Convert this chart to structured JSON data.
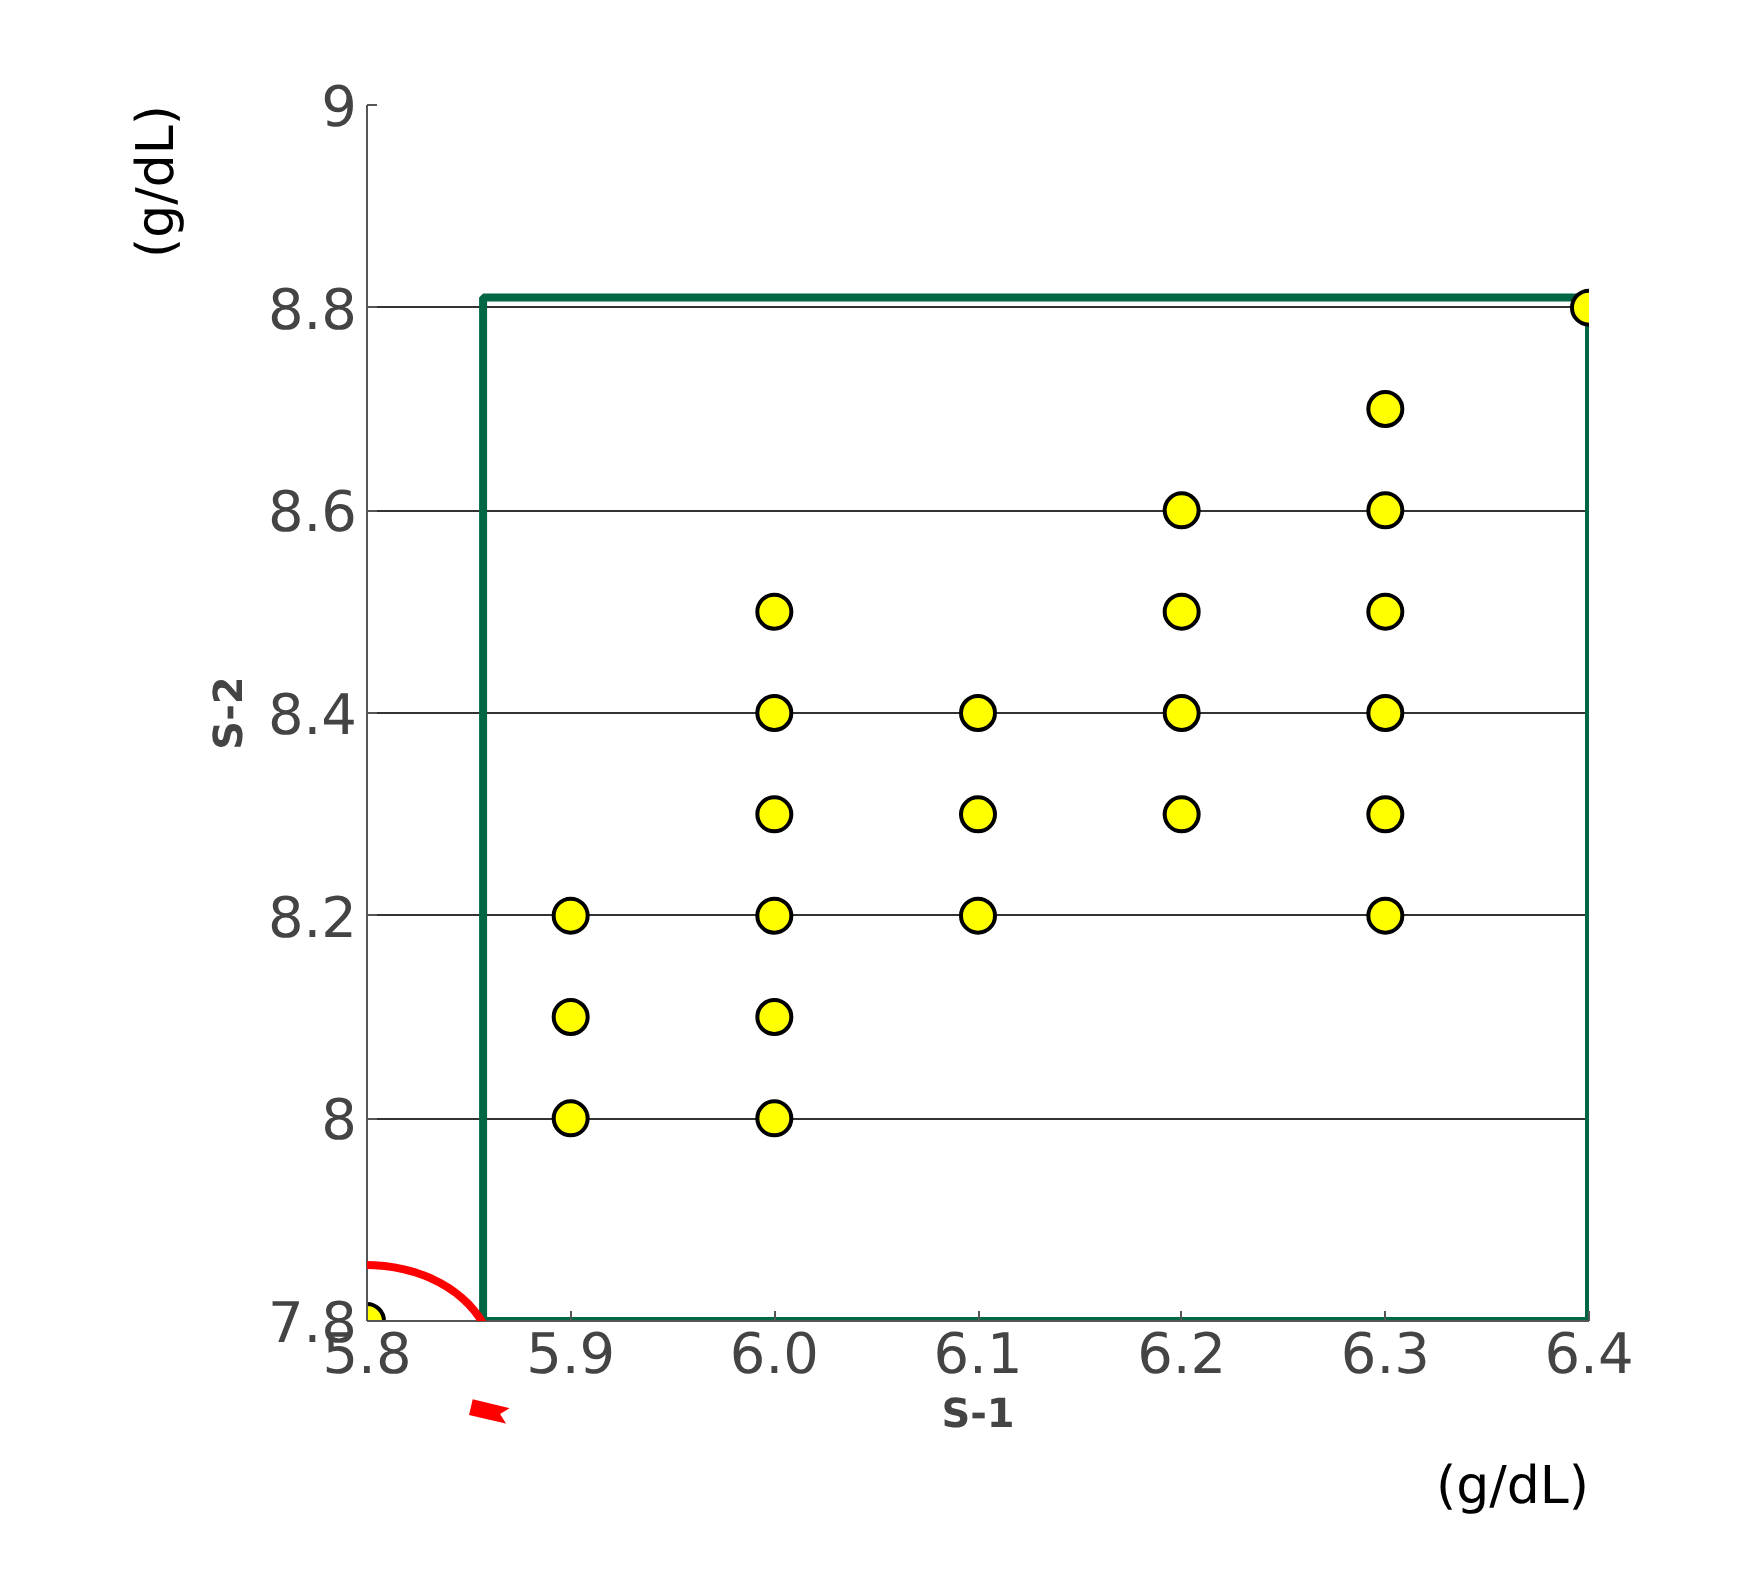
{
  "chart_data": {
    "type": "scatter",
    "xlabel": "S-1",
    "ylabel": "S-2",
    "annotations": [
      "(g/dL)",
      "(g/dL)"
    ],
    "series": [
      {
        "color": "#ffff00",
        "x": [
          5.8,
          5.9,
          5.9,
          5.9,
          6.0,
          6.0,
          6.0,
          6.0,
          6.0,
          6.0,
          6.1,
          6.1,
          6.1,
          6.2,
          6.2,
          6.2,
          6.2,
          6.3,
          6.3,
          6.3,
          6.3,
          6.3,
          6.3,
          6.4
        ],
        "values": [
          7.8,
          8.0,
          8.1,
          8.2,
          8.0,
          8.1,
          8.2,
          8.3,
          8.4,
          8.5,
          8.2,
          8.3,
          8.4,
          8.3,
          8.4,
          8.5,
          8.6,
          8.2,
          8.3,
          8.4,
          8.5,
          8.6,
          8.7,
          8.8
        ]
      }
    ],
    "xlim": [
      5.8,
      6.4
    ],
    "ylim": [
      7.8,
      9
    ],
    "xticks": [
      5.8,
      5.9,
      {
        "value": 6,
        "label": "6.0"
      },
      6.1,
      6.2,
      6.3,
      6.4
    ],
    "yticks": [
      7.8,
      8,
      8.2,
      8.4,
      8.6,
      8.8,
      9
    ],
    "grid": "y",
    "marker": "circle"
  }
}
